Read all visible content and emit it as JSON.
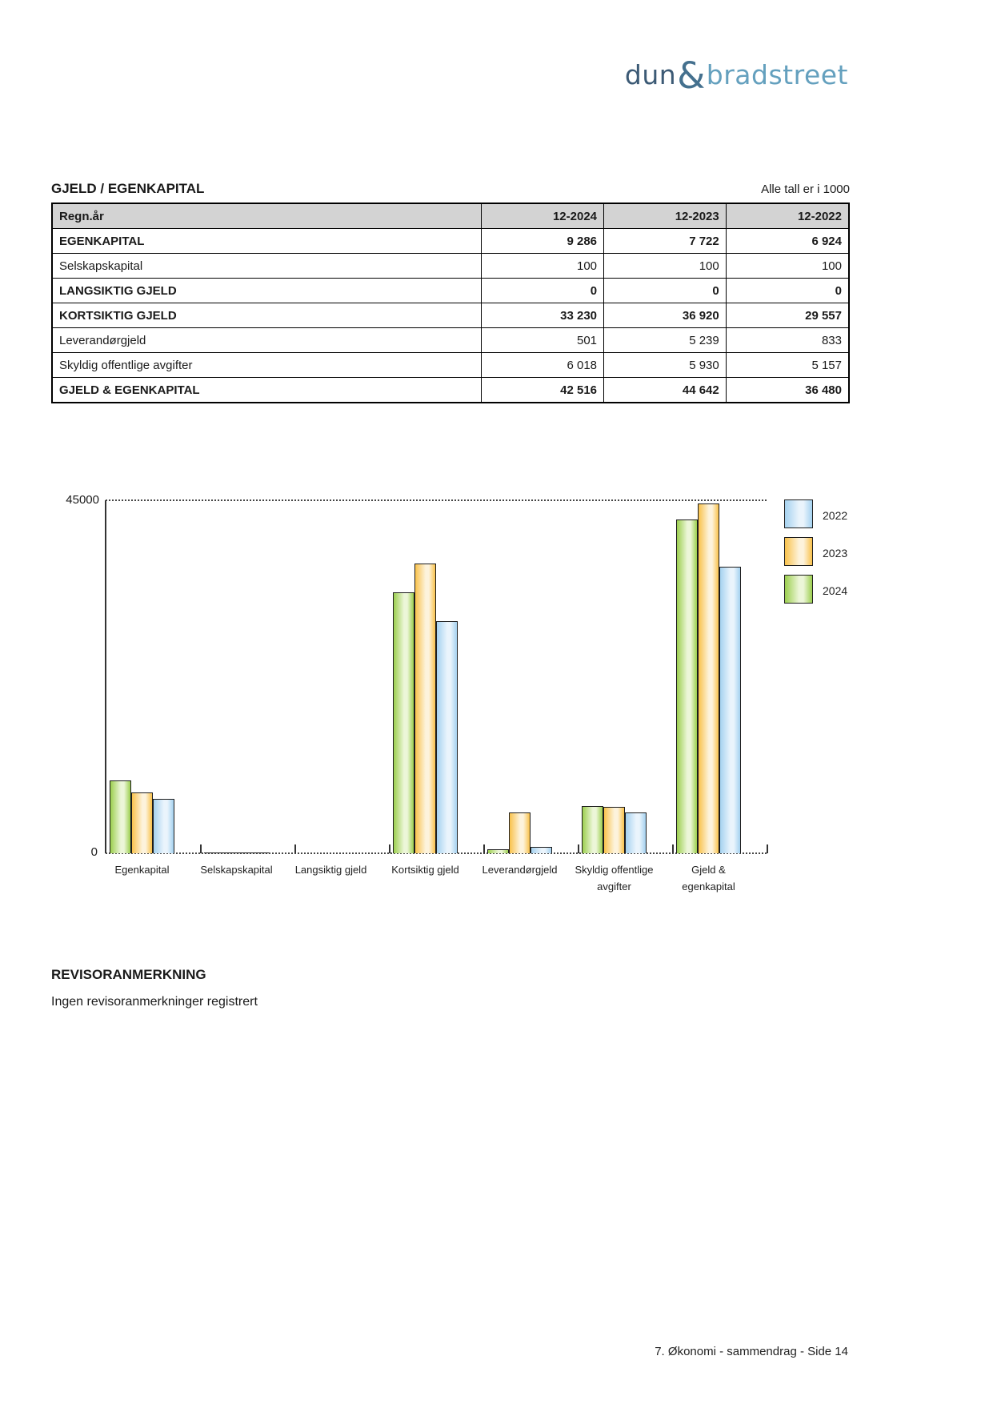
{
  "page": {
    "logo": {
      "part1": "dun",
      "amp": "&",
      "part2": "bradstreet",
      "color_dark": "#3c5a75",
      "color_amp": "#44708e",
      "color_light": "#64a0be"
    },
    "section_title": "GJELD / EGENKAPITAL",
    "units_note": "Alle tall er i 1000",
    "table": {
      "header_bg": "#d3d3d3",
      "columns": [
        "Regn.år",
        "12-2024",
        "12-2023",
        "12-2022"
      ],
      "rows": [
        {
          "label": "EGENKAPITAL",
          "bold": true,
          "values": [
            "9 286",
            "7 722",
            "6 924"
          ]
        },
        {
          "label": "Selskapskapital",
          "bold": false,
          "values": [
            "100",
            "100",
            "100"
          ]
        },
        {
          "label": "LANGSIKTIG GJELD",
          "bold": true,
          "values": [
            "0",
            "0",
            "0"
          ]
        },
        {
          "label": "KORTSIKTIG GJELD",
          "bold": true,
          "values": [
            "33 230",
            "36 920",
            "29 557"
          ]
        },
        {
          "label": "Leverandørgjeld",
          "bold": false,
          "values": [
            "501",
            "5 239",
            "833"
          ]
        },
        {
          "label": "Skyldig offentlige avgifter",
          "bold": false,
          "values": [
            "6 018",
            "5 930",
            "5 157"
          ]
        },
        {
          "label": "GJELD & EGENKAPITAL",
          "bold": true,
          "values": [
            "42 516",
            "44 642",
            "36 480"
          ]
        }
      ]
    },
    "revisor": {
      "heading": "REVISORANMERKNING",
      "text": "Ingen revisoranmerkninger registrert"
    },
    "footer": "7. Økonomi - sammendrag - Side 14"
  },
  "chart_data": {
    "type": "bar",
    "title": "",
    "xlabel": "",
    "ylabel": "",
    "ylim": [
      0,
      45000
    ],
    "yticks": [
      0,
      45000
    ],
    "grid": "dotted line at 45000 and dotted baseline only",
    "legend_position": "right-top",
    "legend": [
      "2022",
      "2023",
      "2024"
    ],
    "categories": [
      "Egenkapital",
      "Selskapskapital",
      "Langsiktig gjeld",
      "Kortsiktig gjeld",
      "Leverandørgjeld",
      "Skyldig offentlige avgifter",
      "Gjeld & egenkapital"
    ],
    "category_lines": [
      [
        "Egenkapital"
      ],
      [
        "Selskapskapital"
      ],
      [
        "Langsiktig gjeld"
      ],
      [
        "Kortsiktig gjeld"
      ],
      [
        "Leverandørgjeld"
      ],
      [
        "Skyldig offentlige",
        "avgifter"
      ],
      [
        "Gjeld &",
        "egenkapital"
      ]
    ],
    "series": [
      {
        "name": "2024",
        "color_edge": "#9ccf4f",
        "color_light": "#ecf6d8",
        "values": [
          9286,
          100,
          0,
          33230,
          501,
          6018,
          42516
        ]
      },
      {
        "name": "2023",
        "color_edge": "#f9c24c",
        "color_light": "#fdf3dc",
        "values": [
          7722,
          100,
          0,
          36920,
          5239,
          5930,
          44642
        ]
      },
      {
        "name": "2022",
        "color_edge": "#a5d2f0",
        "color_light": "#eaf4fc",
        "values": [
          6924,
          100,
          0,
          29557,
          833,
          5157,
          36480
        ]
      }
    ]
  }
}
